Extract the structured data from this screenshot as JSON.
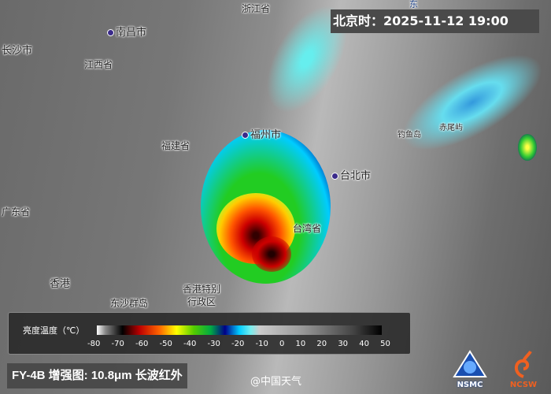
{
  "timestamp": "北京时：2025-11-12 19:00",
  "labels": {
    "zhejiang": "浙江省",
    "nanchang": "南昌市",
    "changsha": "长沙市",
    "jiangxi": "江西省",
    "fujian": "福建省",
    "fuzhou": "福州市",
    "taibei": "台北市",
    "diaoyu": "钓鱼岛",
    "chiwei": "赤尾屿",
    "guangdong": "广东省",
    "taiwan": "台湾省",
    "hongkong": "香港",
    "hk_sar_1": "香港特别",
    "hk_sar_2": "行政区",
    "dongsha": "东沙群岛",
    "partial_top": "东"
  },
  "legend": {
    "title": "亮度温度（℃）",
    "ticks": [
      "-80",
      "-70",
      "-60",
      "-50",
      "-40",
      "-30",
      "-20",
      "-10",
      "0",
      "10",
      "20",
      "30",
      "40",
      "50"
    ]
  },
  "caption": "FY-4B 增强图: 10.8μm 长波红外",
  "credit": "@中国天气",
  "logos": {
    "nsmc": "NSMC",
    "ncsw": "NCSW"
  },
  "colors": {
    "cold_red": "#cc0000",
    "green": "#22cc22",
    "cyan": "#33ddee",
    "blue": "#0033aa"
  }
}
